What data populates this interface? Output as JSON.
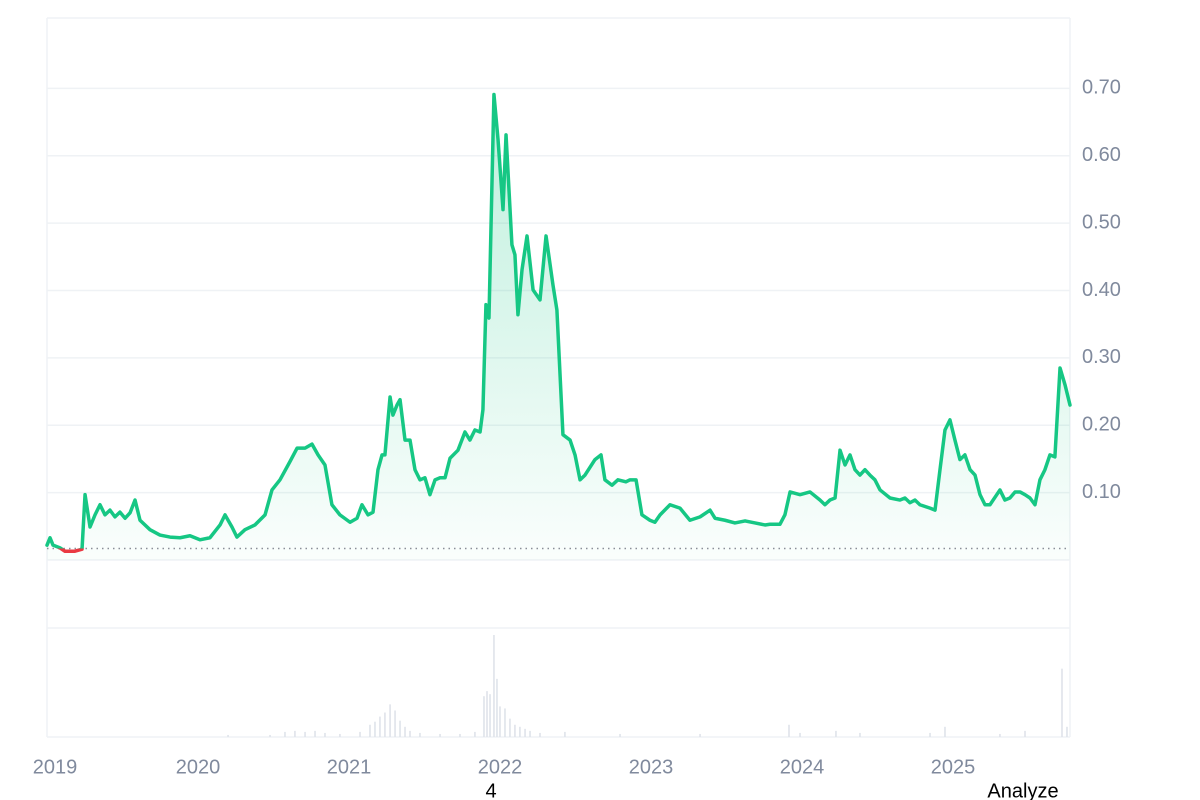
{
  "chart_data": {
    "type": "line",
    "x": [
      2019.0,
      2019.02,
      2019.04,
      2019.086,
      2019.119,
      2019.185,
      2019.232,
      2019.252,
      2019.285,
      2019.318,
      2019.351,
      2019.384,
      2019.417,
      2019.45,
      2019.483,
      2019.517,
      2019.55,
      2019.583,
      2019.616,
      2019.682,
      2019.748,
      2019.815,
      2019.881,
      2019.947,
      2020.013,
      2020.079,
      2020.146,
      2020.179,
      2020.225,
      2020.258,
      2020.311,
      2020.377,
      2020.444,
      2020.49,
      2020.543,
      2020.609,
      2020.656,
      2020.709,
      2020.755,
      2020.795,
      2020.841,
      2020.887,
      2020.94,
      2021.007,
      2021.053,
      2021.086,
      2021.126,
      2021.159,
      2021.192,
      2021.219,
      2021.238,
      2021.272,
      2021.291,
      2021.318,
      2021.338,
      2021.371,
      2021.404,
      2021.437,
      2021.47,
      2021.503,
      2021.536,
      2021.57,
      2021.603,
      2021.636,
      2021.669,
      2021.722,
      2021.768,
      2021.801,
      2021.834,
      2021.868,
      2021.887,
      2021.907,
      2021.927,
      2021.96,
      2021.987,
      2022.02,
      2022.04,
      2022.079,
      2022.099,
      2022.119,
      2022.146,
      2022.179,
      2022.219,
      2022.265,
      2022.305,
      2022.351,
      2022.377,
      2022.417,
      2022.464,
      2022.497,
      2022.53,
      2022.563,
      2022.629,
      2022.669,
      2022.695,
      2022.742,
      2022.781,
      2022.834,
      2022.861,
      2022.901,
      2022.94,
      2022.993,
      2023.026,
      2023.06,
      2023.126,
      2023.192,
      2023.258,
      2023.325,
      2023.391,
      2023.424,
      2023.49,
      2023.556,
      2023.623,
      2023.689,
      2023.755,
      2023.788,
      2023.854,
      2023.887,
      2023.921,
      2023.987,
      2024.053,
      2024.119,
      2024.152,
      2024.185,
      2024.219,
      2024.252,
      2024.285,
      2024.318,
      2024.351,
      2024.384,
      2024.417,
      2024.45,
      2024.483,
      2024.517,
      2024.583,
      2024.649,
      2024.682,
      2024.715,
      2024.748,
      2024.781,
      2024.848,
      2024.881,
      2024.914,
      2024.947,
      2024.98,
      2025.013,
      2025.046,
      2025.079,
      2025.113,
      2025.146,
      2025.179,
      2025.212,
      2025.245,
      2025.311,
      2025.344,
      2025.377,
      2025.411,
      2025.444,
      2025.477,
      2025.51,
      2025.543,
      2025.576,
      2025.609,
      2025.642,
      2025.675,
      2025.709,
      2025.742,
      2025.775
    ],
    "values": [
      0.022,
      0.033,
      0.022,
      0.018,
      0.013,
      0.013,
      0.016,
      0.097,
      0.049,
      0.067,
      0.082,
      0.067,
      0.074,
      0.064,
      0.071,
      0.062,
      0.07,
      0.089,
      0.059,
      0.045,
      0.037,
      0.034,
      0.033,
      0.036,
      0.03,
      0.033,
      0.052,
      0.067,
      0.049,
      0.034,
      0.045,
      0.052,
      0.067,
      0.104,
      0.119,
      0.146,
      0.166,
      0.166,
      0.172,
      0.156,
      0.141,
      0.082,
      0.067,
      0.056,
      0.062,
      0.082,
      0.067,
      0.071,
      0.134,
      0.156,
      0.156,
      0.242,
      0.215,
      0.23,
      0.238,
      0.178,
      0.178,
      0.134,
      0.119,
      0.122,
      0.097,
      0.119,
      0.122,
      0.122,
      0.151,
      0.163,
      0.19,
      0.178,
      0.193,
      0.19,
      0.223,
      0.379,
      0.359,
      0.691,
      0.624,
      0.52,
      0.631,
      0.468,
      0.453,
      0.364,
      0.431,
      0.481,
      0.401,
      0.386,
      0.481,
      0.408,
      0.371,
      0.186,
      0.178,
      0.156,
      0.119,
      0.126,
      0.149,
      0.156,
      0.119,
      0.111,
      0.119,
      0.116,
      0.119,
      0.119,
      0.067,
      0.059,
      0.056,
      0.067,
      0.082,
      0.077,
      0.059,
      0.064,
      0.074,
      0.062,
      0.059,
      0.055,
      0.058,
      0.055,
      0.052,
      0.053,
      0.053,
      0.067,
      0.101,
      0.097,
      0.101,
      0.089,
      0.082,
      0.089,
      0.092,
      0.163,
      0.141,
      0.156,
      0.134,
      0.126,
      0.134,
      0.126,
      0.119,
      0.104,
      0.092,
      0.089,
      0.092,
      0.085,
      0.089,
      0.082,
      0.077,
      0.074,
      0.134,
      0.193,
      0.208,
      0.178,
      0.149,
      0.156,
      0.134,
      0.126,
      0.097,
      0.082,
      0.082,
      0.104,
      0.089,
      0.092,
      0.101,
      0.101,
      0.097,
      0.092,
      0.082,
      0.119,
      0.134,
      0.156,
      0.153,
      0.285,
      0.26,
      0.23
    ],
    "baseline": 0.017,
    "color": "#16c784",
    "down_color": "#ea3943",
    "xlim": [
      2019,
      2025.775
    ],
    "xticks": [
      2019,
      2020,
      2021,
      2022,
      2023,
      2024,
      2025
    ],
    "ylim": [
      0,
      0.8
    ],
    "yticks": [
      {
        "value": 0.1,
        "label": "0.10"
      },
      {
        "value": 0.2,
        "label": "0.20"
      },
      {
        "value": 0.3,
        "label": "0.30"
      },
      {
        "value": 0.4,
        "label": "0.40"
      },
      {
        "value": 0.5,
        "label": "0.50"
      },
      {
        "value": 0.6,
        "label": "0.60"
      },
      {
        "value": 0.7,
        "label": "0.70"
      }
    ],
    "grid": true,
    "volume": {
      "color": "#dfe3ea",
      "x": [
        2020.199,
        2020.477,
        2020.576,
        2020.642,
        2020.709,
        2020.775,
        2020.841,
        2020.94,
        2021.073,
        2021.139,
        2021.172,
        2021.205,
        2021.238,
        2021.272,
        2021.305,
        2021.338,
        2021.371,
        2021.404,
        2021.47,
        2021.603,
        2021.735,
        2021.834,
        2021.894,
        2021.914,
        2021.934,
        2021.96,
        2021.98,
        2022.0,
        2022.033,
        2022.066,
        2022.099,
        2022.132,
        2022.166,
        2022.199,
        2022.265,
        2022.43,
        2022.795,
        2023.325,
        2023.914,
        2023.987,
        2024.225,
        2024.384,
        2024.848,
        2024.947,
        2025.311,
        2025.477,
        2025.722,
        2025.755
      ],
      "values": [
        2,
        2,
        5,
        6,
        5,
        6,
        4,
        3,
        5,
        12,
        15,
        20,
        24,
        32,
        26,
        16,
        10,
        6,
        4,
        3,
        3,
        5,
        40,
        45,
        42,
        100,
        57,
        30,
        28,
        18,
        12,
        10,
        8,
        6,
        4,
        5,
        3,
        3,
        12,
        4,
        6,
        4,
        4,
        10,
        3,
        6,
        67,
        10
      ]
    },
    "volume_lim": [
      0,
      100
    ],
    "annotations": [
      "4",
      "Analyze"
    ]
  }
}
